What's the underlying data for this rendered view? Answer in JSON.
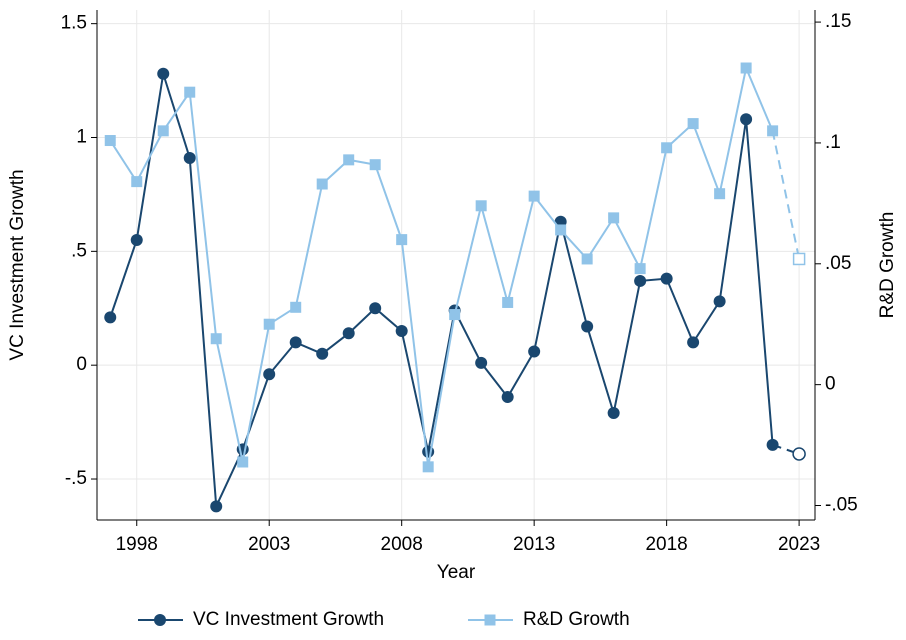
{
  "chart_data": {
    "type": "line",
    "xlabel": "Year",
    "ylabel": "VC Investment Growth",
    "y2label": "R&D Growth",
    "x": [
      1997,
      1998,
      1999,
      2000,
      2001,
      2002,
      2003,
      2004,
      2005,
      2006,
      2007,
      2008,
      2009,
      2010,
      2011,
      2012,
      2013,
      2014,
      2015,
      2016,
      2017,
      2018,
      2019,
      2020,
      2021,
      2022,
      2023
    ],
    "xlim": [
      1996.5,
      2023.6
    ],
    "xticks": [
      1998,
      2003,
      2008,
      2013,
      2018,
      2023
    ],
    "ylim": [
      -0.68,
      1.56
    ],
    "yticks": [
      {
        "value": -0.5,
        "label": "-.5"
      },
      0,
      {
        "value": 0.5,
        "label": ".5"
      },
      1,
      1.5
    ],
    "y2lim": [
      -0.056,
      0.155
    ],
    "y2ticks": [
      {
        "value": -0.05,
        "label": "-.05"
      },
      0,
      {
        "value": 0.05,
        "label": ".05"
      },
      {
        "value": 0.1,
        "label": ".1"
      },
      {
        "value": 0.15,
        "label": ".15"
      }
    ],
    "grid": true,
    "legend": "bottom",
    "last_point_dashed": true,
    "series": [
      {
        "name": "VC Investment Growth",
        "color": "#1a476f",
        "marker": "circle",
        "values": [
          0.21,
          0.55,
          1.28,
          0.91,
          -0.62,
          -0.37,
          -0.04,
          0.1,
          0.05,
          0.14,
          0.25,
          0.15,
          -0.38,
          0.24,
          0.01,
          -0.14,
          0.06,
          0.63,
          0.17,
          -0.21,
          0.37,
          0.38,
          0.1,
          0.28,
          1.08,
          -0.35,
          -0.39
        ]
      },
      {
        "name": "R&D Growth",
        "color": "#90c3e8",
        "marker": "square",
        "axis": "y2",
        "values": [
          0.101,
          0.084,
          0.105,
          0.121,
          0.019,
          -0.032,
          0.025,
          0.032,
          0.083,
          0.093,
          0.091,
          0.06,
          -0.034,
          0.029,
          0.074,
          0.034,
          0.078,
          0.064,
          0.052,
          0.069,
          0.048,
          0.098,
          0.108,
          0.079,
          0.131,
          0.105,
          0.052
        ]
      }
    ]
  }
}
